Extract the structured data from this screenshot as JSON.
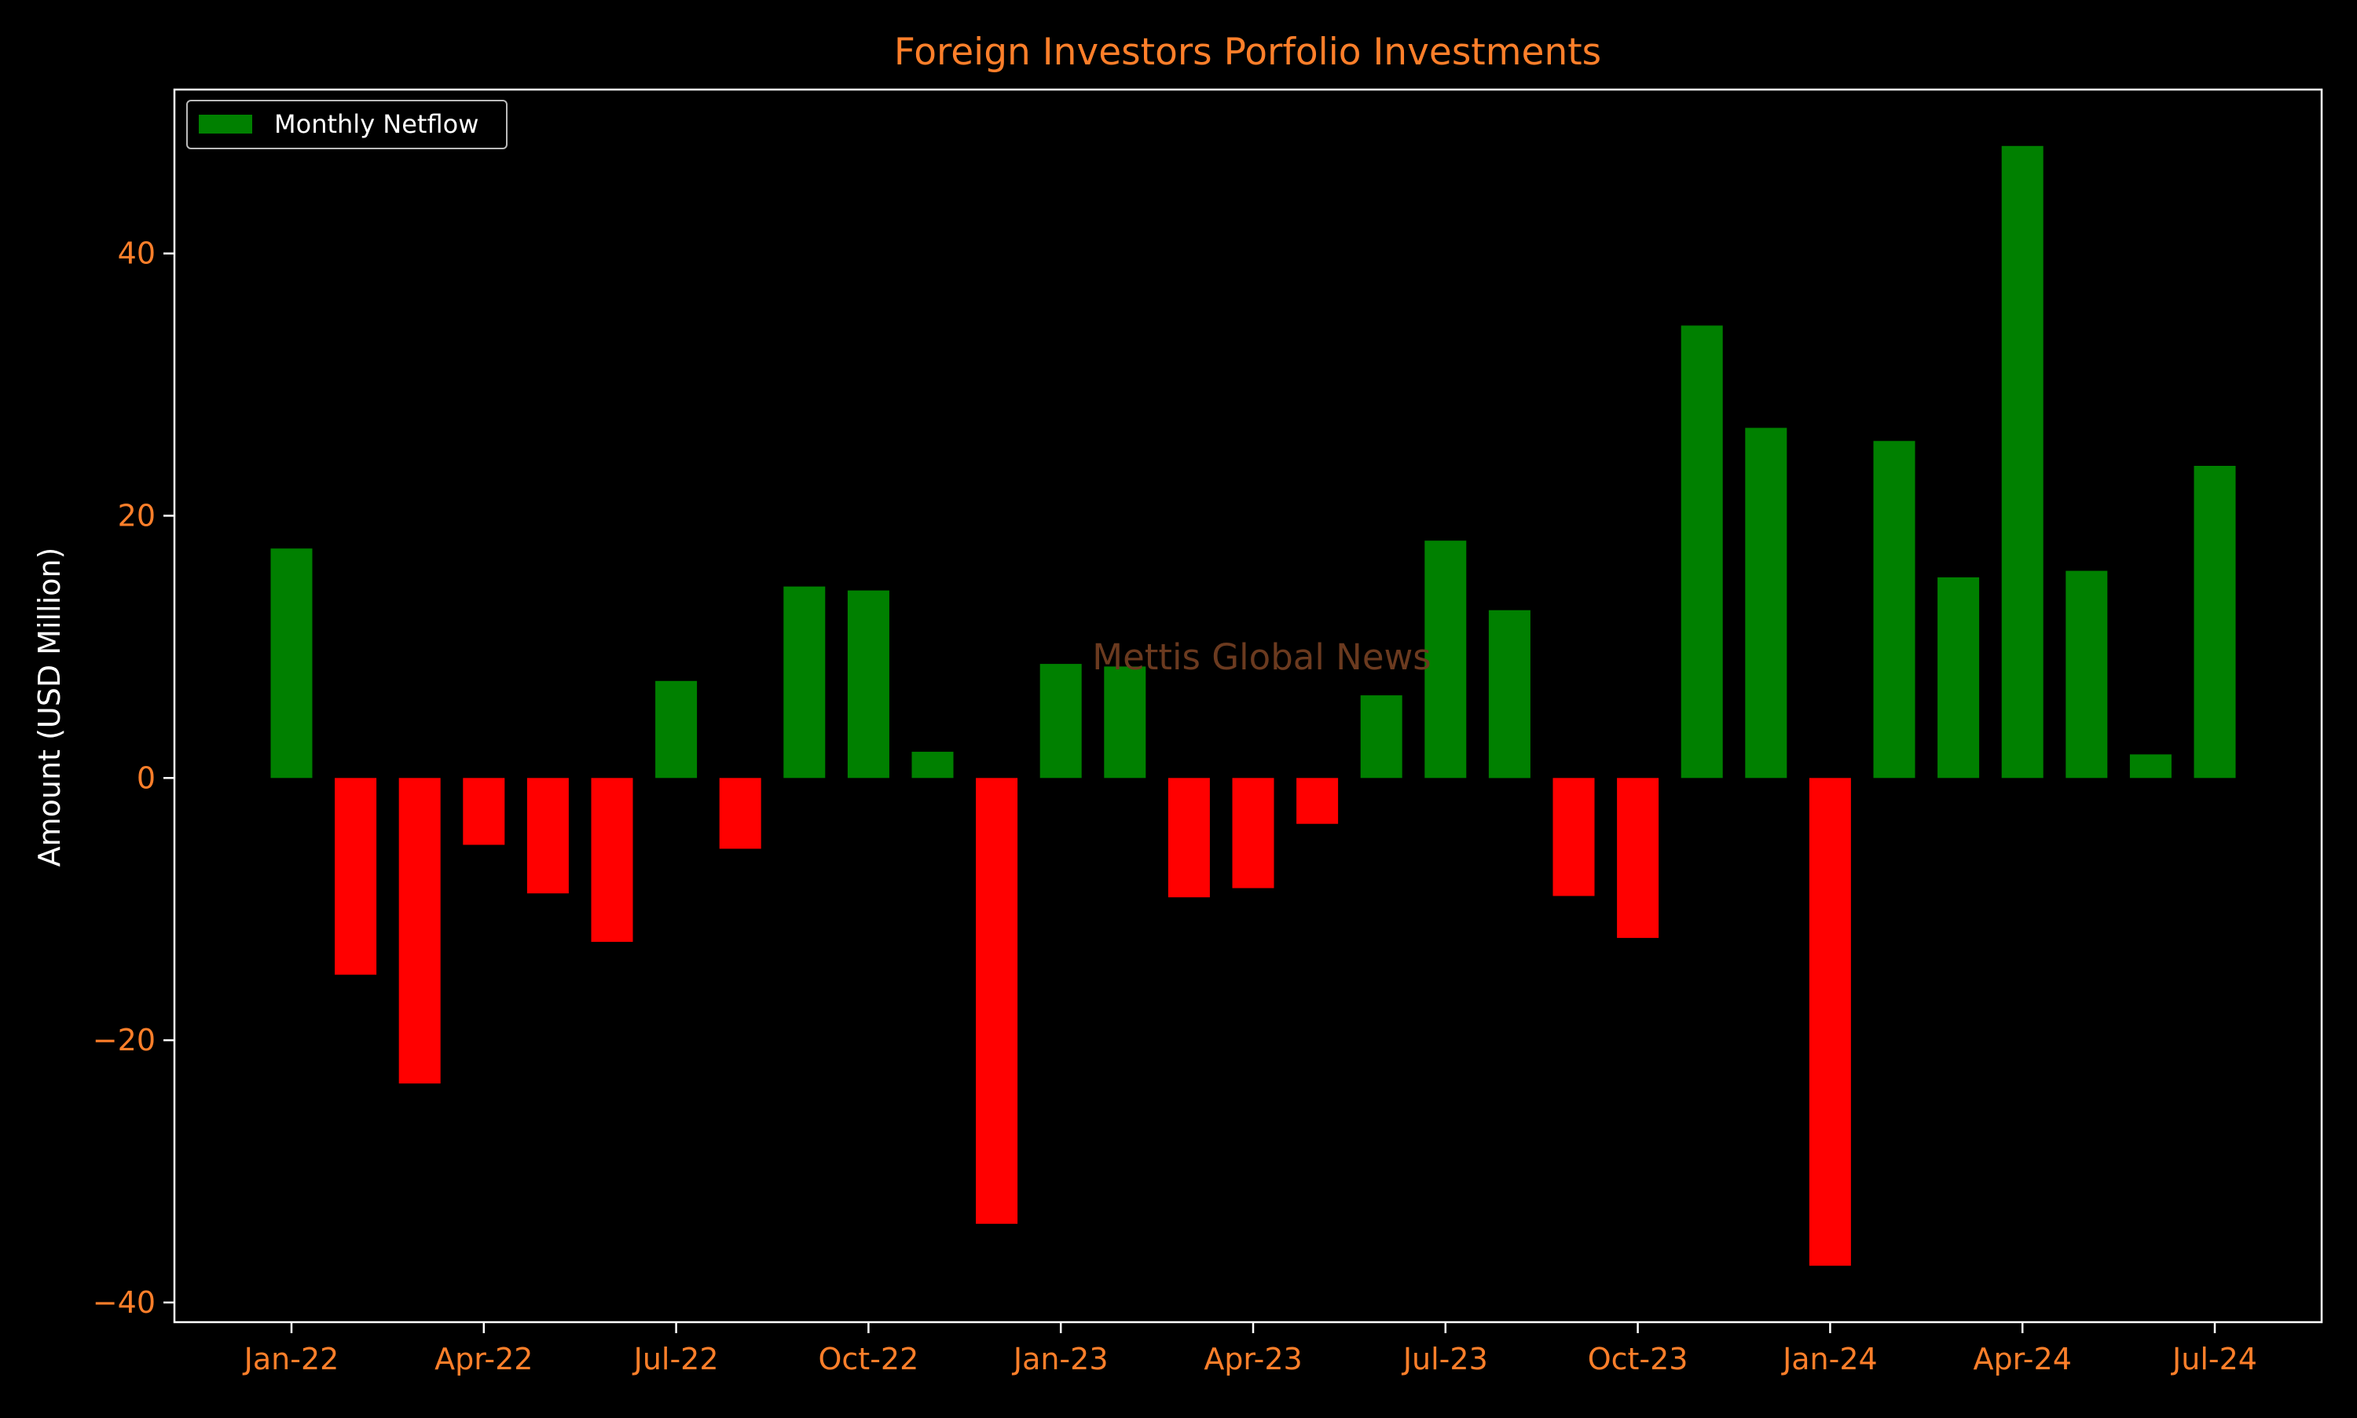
{
  "chart_data": {
    "type": "bar",
    "title": "Foreign Investors Porfolio Investments",
    "xlabel": "",
    "ylabel": "Amount (USD Million)",
    "watermark": "Mettis Global News",
    "categories": [
      "Jan-22",
      "Feb-22",
      "Mar-22",
      "Apr-22",
      "May-22",
      "Jun-22",
      "Jul-22",
      "Aug-22",
      "Sep-22",
      "Oct-22",
      "Nov-22",
      "Dec-22",
      "Jan-23",
      "Feb-23",
      "Mar-23",
      "Apr-23",
      "May-23",
      "Jun-23",
      "Jul-23",
      "Aug-23",
      "Sep-23",
      "Oct-23",
      "Nov-23",
      "Dec-23",
      "Jan-24",
      "Feb-24",
      "Mar-24",
      "Apr-24",
      "May-24",
      "Jun-24",
      "Jul-24"
    ],
    "series": [
      {
        "name": "Monthly Netflow",
        "values": [
          17.5,
          -15.0,
          -23.3,
          -5.1,
          -8.8,
          -12.5,
          7.4,
          -5.4,
          14.6,
          14.3,
          2.0,
          -34.0,
          8.7,
          8.5,
          -9.1,
          -8.4,
          -3.5,
          6.3,
          18.1,
          12.8,
          -9.0,
          -12.2,
          34.5,
          26.7,
          -37.2,
          25.7,
          15.3,
          48.2,
          15.8,
          1.8,
          23.8
        ]
      }
    ],
    "x_tick_labels": [
      "Jan-22",
      "Apr-22",
      "Jul-22",
      "Oct-22",
      "Jan-23",
      "Apr-23",
      "Jul-23",
      "Oct-23",
      "Jan-24",
      "Apr-24",
      "Jul-24"
    ],
    "y_ticks": [
      -40,
      -20,
      0,
      20,
      40
    ],
    "y_tick_labels": [
      "−40",
      "−20",
      "0",
      "20",
      "40"
    ],
    "ylim": [
      -41.5,
      52.5
    ],
    "grid": false,
    "legend": {
      "position": "top-left",
      "entries": [
        "Monthly Netflow"
      ]
    },
    "colors": {
      "positive": "#008000",
      "negative": "#ff0000",
      "background": "#000000",
      "axes": "#ffffff",
      "title": "#ff7f2a",
      "tick_labels": "#ff7f2a",
      "ylabel": "#ffffff",
      "watermark": "#6b3a1f"
    }
  }
}
